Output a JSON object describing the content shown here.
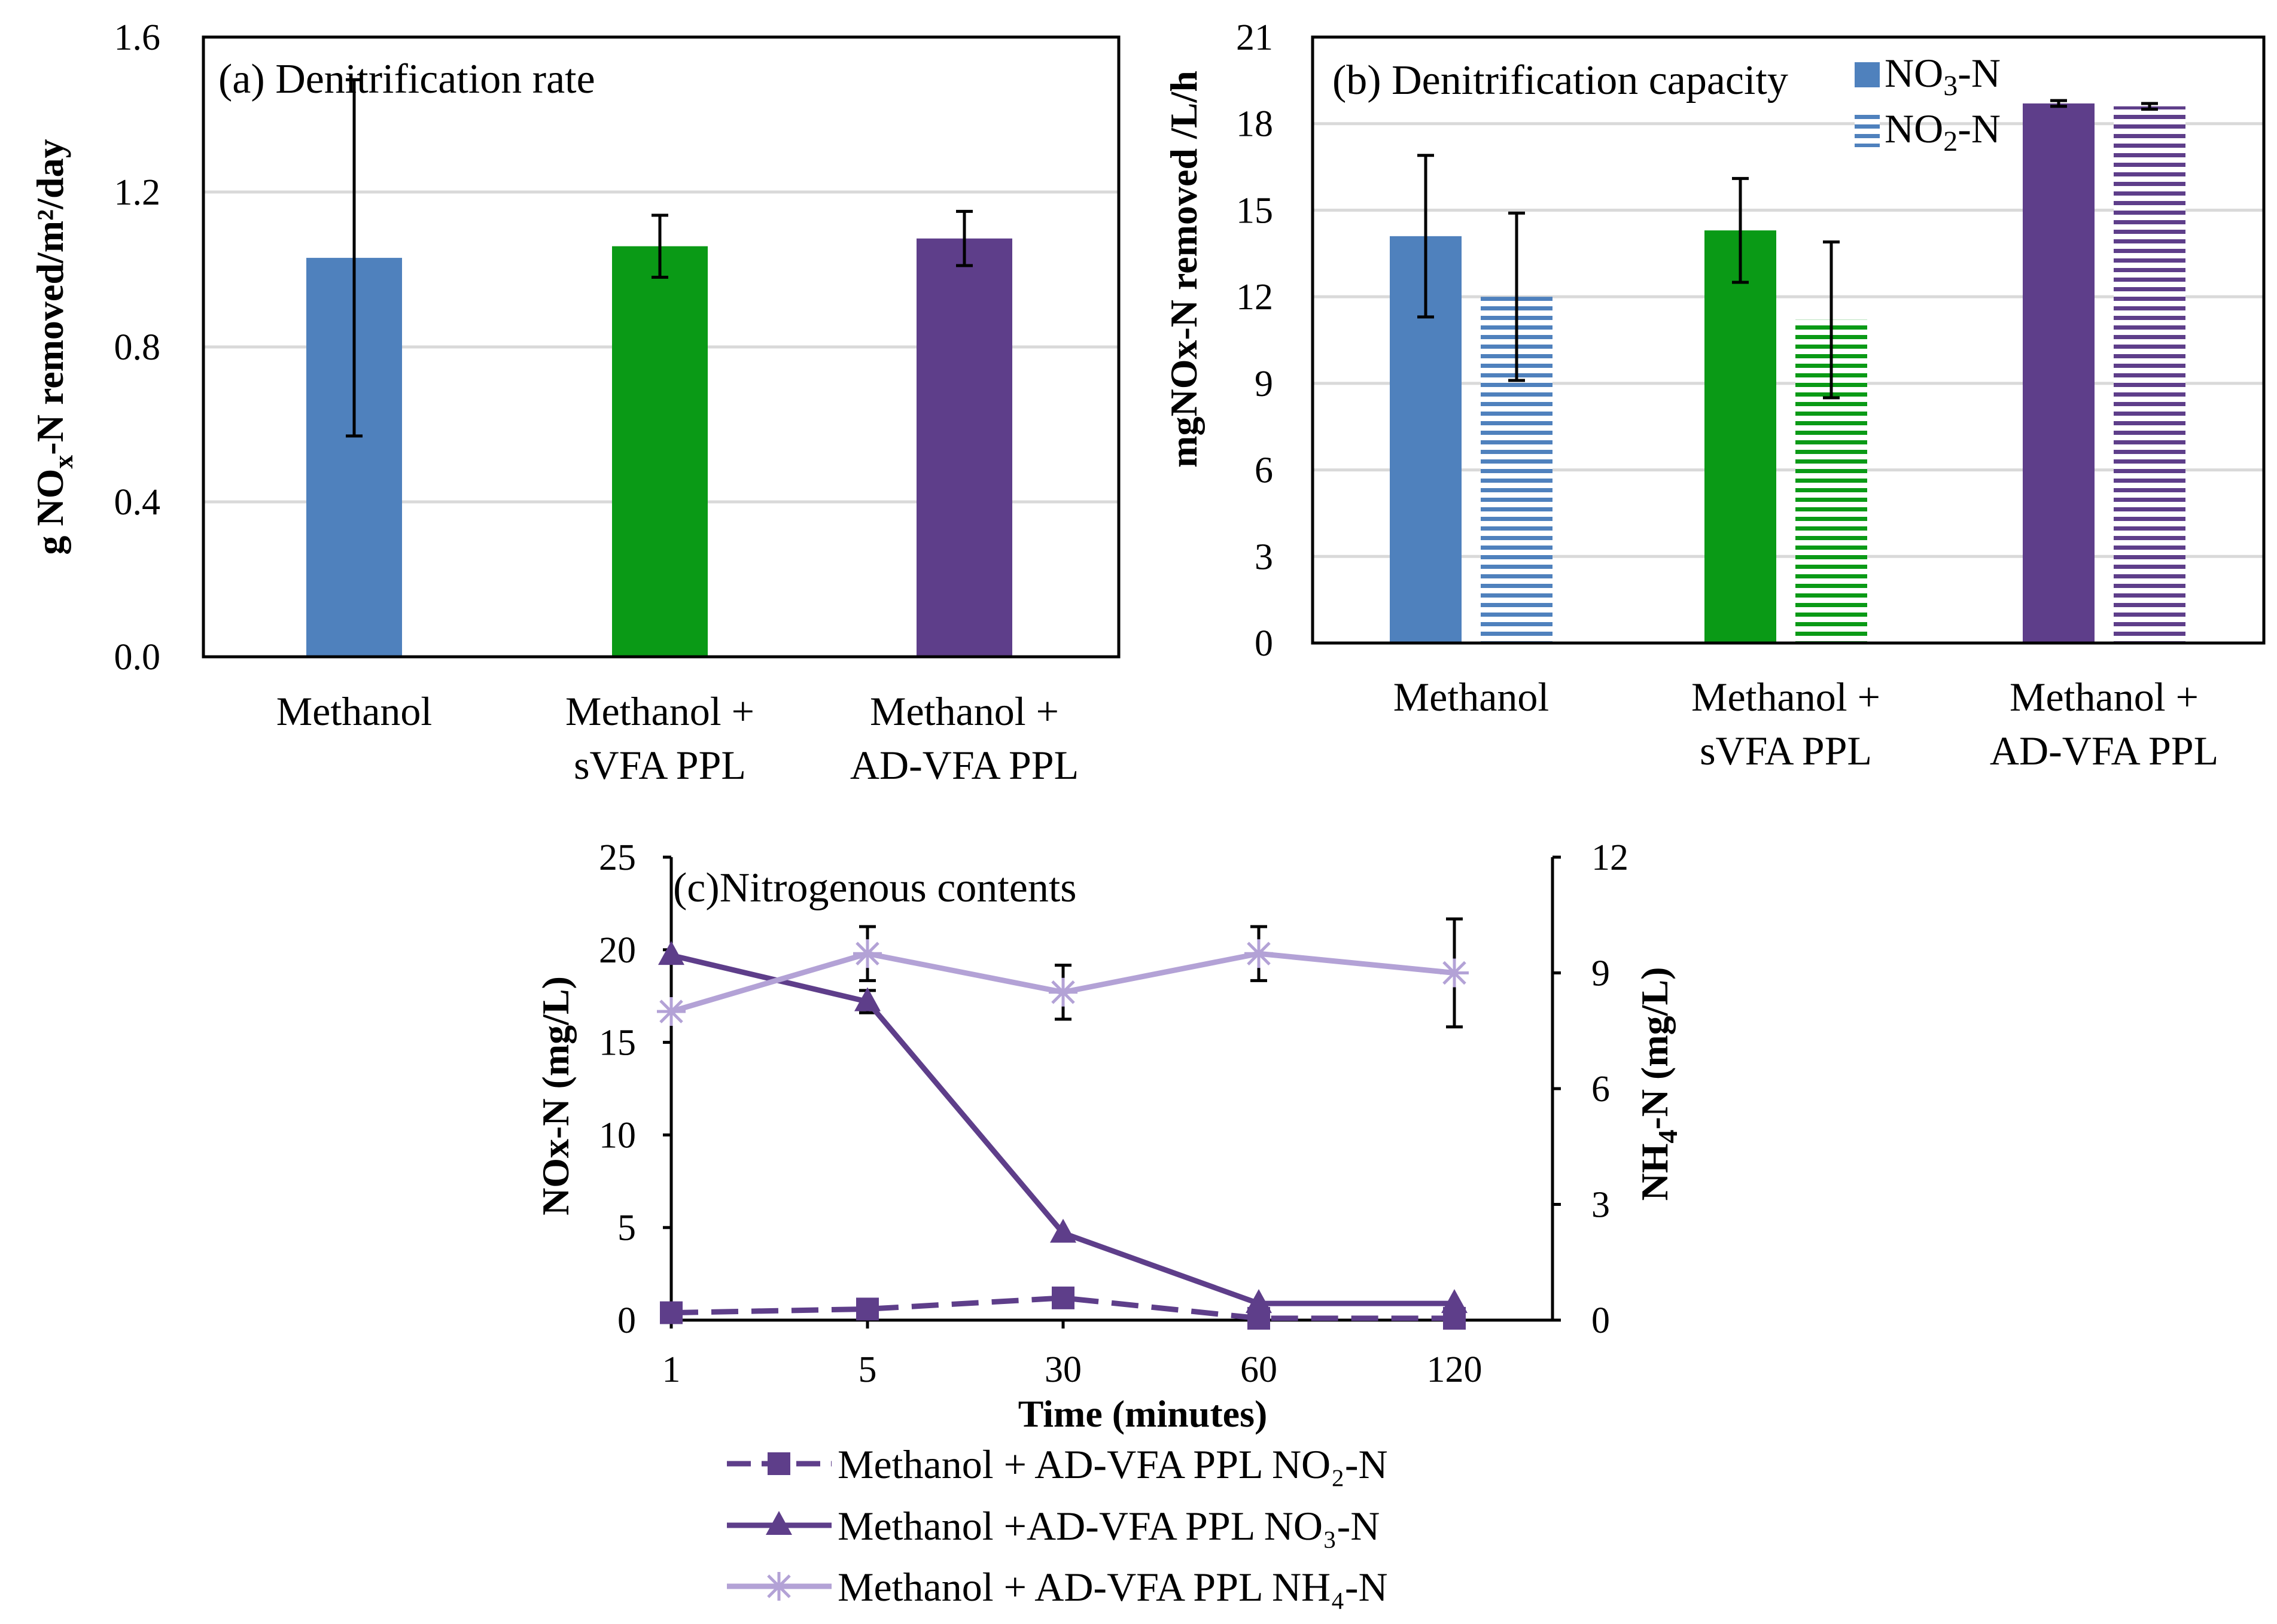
{
  "colors": {
    "methanol": "#4F81BD",
    "svfa": "#0A9A16",
    "advfa": "#5E3E8A",
    "nh4": "#B3A2D6",
    "grid": "#D9D9D9"
  },
  "chart_data": [
    {
      "id": "a",
      "type": "bar",
      "title": "(a) Denitrification rate",
      "ylabel_parts": [
        "g NO",
        "x",
        "-N removed/m²/day"
      ],
      "ylim": [
        0,
        1.6
      ],
      "yticks": [
        "0.0",
        "0.4",
        "0.8",
        "1.2",
        "1.6"
      ],
      "ytick_values": [
        0,
        0.4,
        0.8,
        1.2,
        1.6
      ],
      "categories": [
        [
          "Methanol"
        ],
        [
          "Methanol +",
          "sVFA PPL"
        ],
        [
          "Methanol +",
          "AD-VFA PPL"
        ]
      ],
      "values": [
        1.03,
        1.06,
        1.08
      ],
      "errors": [
        0.46,
        0.08,
        0.07
      ],
      "colors": [
        "methanol",
        "svfa",
        "advfa"
      ]
    },
    {
      "id": "b",
      "type": "bar",
      "title": "(b) Denitrification  capacity",
      "ylabel": "mgNOx-N removed /L/h",
      "ylim": [
        0,
        21
      ],
      "yticks": [
        "0",
        "3",
        "6",
        "9",
        "12",
        "15",
        "18",
        "21"
      ],
      "ytick_values": [
        0,
        3,
        6,
        9,
        12,
        15,
        18,
        21
      ],
      "categories": [
        [
          "Methanol"
        ],
        [
          "Methanol +",
          "sVFA PPL"
        ],
        [
          "Methanol +",
          "AD-VFA PPL"
        ]
      ],
      "legend": [
        {
          "parts": [
            "NO",
            "3",
            "-N"
          ],
          "pattern": "solid"
        },
        {
          "parts": [
            "NO",
            "2",
            "-N"
          ],
          "pattern": "hatched"
        }
      ],
      "series": [
        {
          "name": "NO3-N",
          "pattern": "solid",
          "values": [
            14.1,
            14.3,
            18.7
          ],
          "errors": [
            2.8,
            1.8,
            0.1
          ]
        },
        {
          "name": "NO2-N",
          "pattern": "hatched",
          "values": [
            12.0,
            11.2,
            18.6
          ],
          "errors": [
            2.9,
            2.7,
            0.1
          ]
        }
      ],
      "colors": [
        "methanol",
        "svfa",
        "advfa"
      ]
    },
    {
      "id": "c",
      "type": "line",
      "title": "(c)Nitrogenous contents",
      "xlabel": "Time (minutes)",
      "ylabel": "NOx-N (mg/L)",
      "y2label_parts": [
        "NH",
        "4",
        "-N (mg/L)"
      ],
      "x": [
        "1",
        "5",
        "30",
        "60",
        "120"
      ],
      "ylim": [
        0,
        25
      ],
      "yticks": [
        "0",
        "5",
        "10",
        "15",
        "20",
        "25"
      ],
      "ytick_values": [
        0,
        5,
        10,
        15,
        20,
        25
      ],
      "y2lim": [
        0,
        12
      ],
      "y2ticks": [
        "0",
        "3",
        "6",
        "9",
        "12"
      ],
      "y2tick_values": [
        0,
        3,
        6,
        9,
        12
      ],
      "series": [
        {
          "name": "Methanol + AD-VFA PPL NO₂-N",
          "axis": "left",
          "marker": "square",
          "dash": true,
          "color": "advfa",
          "values": [
            0.4,
            0.6,
            1.2,
            0.1,
            0.1
          ]
        },
        {
          "name": "Methanol +AD-VFA PPL NO₃-N",
          "axis": "left",
          "marker": "triangle",
          "dash": false,
          "color": "advfa",
          "values": [
            19.7,
            17.2,
            4.7,
            0.9,
            0.9
          ],
          "errors": [
            0,
            0.6,
            0,
            0,
            0
          ]
        },
        {
          "name": "Methanol + AD-VFA PPL NH₄-N",
          "axis": "right",
          "marker": "star",
          "dash": false,
          "color": "nh4",
          "values": [
            8.0,
            9.5,
            8.5,
            9.5,
            9.0
          ],
          "errors": [
            0,
            0.7,
            0.7,
            0.7,
            1.4
          ]
        }
      ]
    }
  ]
}
